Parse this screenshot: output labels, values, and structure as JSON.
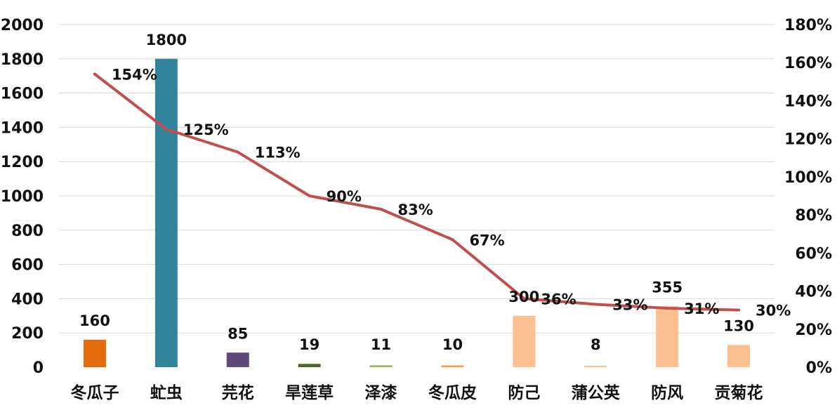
{
  "chart_data": {
    "type": "bar+line",
    "categories": [
      "冬瓜子",
      "虻虫",
      "芫花",
      "旱莲草",
      "泽漆",
      "冬瓜皮",
      "防己",
      "蒲公英",
      "防风",
      "贡菊花"
    ],
    "series": [
      {
        "type": "bar",
        "axis": "left",
        "values": [
          160,
          1800,
          85,
          19,
          11,
          10,
          300,
          8,
          355,
          130
        ],
        "labels": [
          "160",
          "1800",
          "85",
          "19",
          "11",
          "10",
          "300",
          "8",
          "355",
          "130"
        ],
        "colors": [
          "#e36c0a",
          "#31849b",
          "#5f497a",
          "#4f6228",
          "#9bbb59",
          "#f79646",
          "#fac08f",
          "#fac08f",
          "#fac08f",
          "#fac08f"
        ]
      },
      {
        "type": "line",
        "axis": "right",
        "values": [
          1.54,
          1.25,
          1.13,
          0.9,
          0.83,
          0.67,
          0.36,
          0.33,
          0.31,
          0.3
        ],
        "labels": [
          "154%",
          "125%",
          "113%",
          "90%",
          "83%",
          "67%",
          "36%",
          "33%",
          "31%",
          "30%"
        ],
        "color": "#c0504d"
      }
    ],
    "y_left": {
      "range": [
        0,
        2000
      ],
      "ticks": [
        "0",
        "200",
        "400",
        "600",
        "800",
        "1000",
        "1200",
        "1400",
        "1600",
        "1800",
        "2000"
      ]
    },
    "y_right": {
      "range": [
        0,
        1.8
      ],
      "ticks": [
        "0%",
        "20%",
        "40%",
        "60%",
        "80%",
        "100%",
        "120%",
        "140%",
        "160%",
        "180%"
      ]
    },
    "grid": true,
    "legend": "none",
    "title": "",
    "xlabel": "",
    "ylabel": ""
  }
}
